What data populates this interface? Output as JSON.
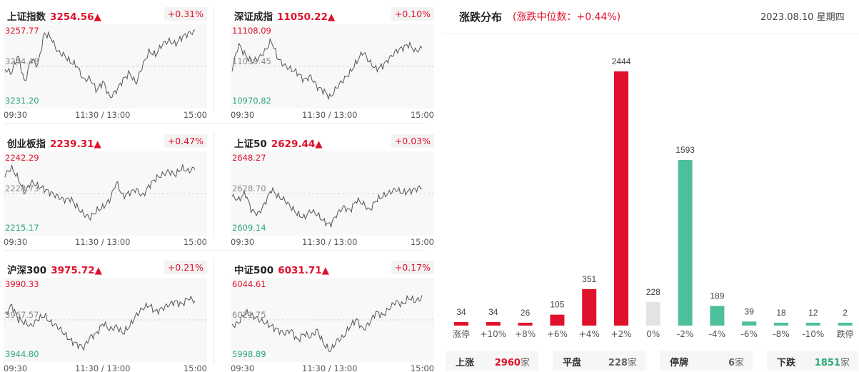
{
  "indices": [
    {
      "name": "上证指数",
      "value": "3254.56▲",
      "pct": "+0.31%",
      "ymax": "3257.77",
      "ymid": "3244.48",
      "ymin": "3231.20",
      "x_start": "09:30",
      "x_mid": "11:30 / 13:00",
      "x_end": "15:00"
    },
    {
      "name": "深证成指",
      "value": "11050.22▲",
      "pct": "+0.10%",
      "ymax": "11108.09",
      "ymid": "11039.45",
      "ymin": "10970.82",
      "x_start": "09:30",
      "x_mid": "11:30 / 13:00",
      "x_end": "15:00"
    },
    {
      "name": "创业板指",
      "value": "2239.31▲",
      "pct": "+0.47%",
      "ymax": "2242.29",
      "ymid": "2228.73",
      "ymin": "2215.17",
      "x_start": "09:30",
      "x_mid": "11:30 / 13:00",
      "x_end": "15:00"
    },
    {
      "name": "上证50",
      "value": "2629.44▲",
      "pct": "+0.03%",
      "ymax": "2648.27",
      "ymid": "2628.70",
      "ymin": "2609.14",
      "x_start": "09:30",
      "x_mid": "11:30 / 13:00",
      "x_end": "15:00"
    },
    {
      "name": "沪深300",
      "value": "3975.72▲",
      "pct": "+0.21%",
      "ymax": "3990.33",
      "ymid": "3967.57",
      "ymin": "3944.80",
      "x_start": "09:30",
      "x_mid": "11:30 / 13:00",
      "x_end": "15:00"
    },
    {
      "name": "中证500",
      "value": "6031.71▲",
      "pct": "+0.17%",
      "ymax": "6044.61",
      "ymid": "6021.75",
      "ymin": "5998.89",
      "x_start": "09:30",
      "x_mid": "11:30 / 13:00",
      "x_end": "15:00"
    }
  ],
  "distribution": {
    "title": "涨跌分布",
    "subtitle": "(涨跌中位数：+0.44%)",
    "date": "2023.08.10 星期四"
  },
  "colors": {
    "up": "#e0112b",
    "down": "#4cc09c",
    "flat": "#e3e3e3"
  },
  "chart_data": {
    "type": "bar",
    "title": "涨跌分布",
    "categories": [
      "涨停",
      "+10%",
      "+8%",
      "+6%",
      "+4%",
      "+2%",
      "0%",
      "-2%",
      "-4%",
      "-6%",
      "-8%",
      "-10%",
      "跌停"
    ],
    "values": [
      34,
      34,
      26,
      105,
      351,
      2444,
      228,
      1593,
      189,
      39,
      18,
      12,
      2
    ],
    "bar_colors": [
      "up",
      "up",
      "up",
      "up",
      "up",
      "up",
      "flat",
      "down",
      "down",
      "down",
      "down",
      "down",
      "down"
    ]
  },
  "summary": {
    "up_label": "上涨",
    "up_count": "2960",
    "unit": "家",
    "flat_label": "平盘",
    "flat_count": "228",
    "halt_label": "停牌",
    "halt_count": "6",
    "down_label": "下跌",
    "down_count": "1851"
  }
}
